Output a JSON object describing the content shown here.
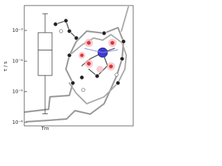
{
  "chart_data": {
    "type": "box",
    "ylabel": "τ / s",
    "yscale": "log",
    "categories": [
      "Tm"
    ],
    "boxes": [
      {
        "min": 1.9e-06,
        "q1": 3.4e-05,
        "median": 0.00023,
        "q3": 0.00085,
        "max": 0.0035
      }
    ],
    "color": "#333333",
    "ylim": [
      7.7e-07,
      0.0065
    ],
    "yticks": [
      {
        "value": 1e-06,
        "label": "10⁻⁶"
      },
      {
        "value": 1e-05,
        "label": "10⁻⁵"
      },
      {
        "value": 0.0001,
        "label": "10⁻⁴"
      },
      {
        "value": 0.001,
        "label": "10⁻³"
      }
    ]
  }
}
